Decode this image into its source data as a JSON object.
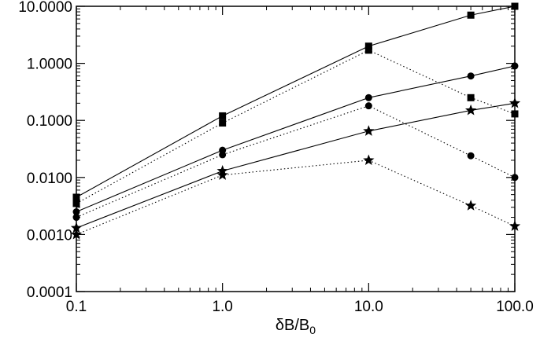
{
  "chart_data": {
    "type": "line",
    "xscale": "log",
    "yscale": "log",
    "xlim": [
      0.1,
      100.0
    ],
    "ylim": [
      0.0001,
      10.0
    ],
    "xlabel": "δB/B",
    "xlabel_sub": "0",
    "ylabel": "",
    "title": "",
    "grid": false,
    "legend": "none",
    "xticks": [
      {
        "value": 0.1,
        "label": "0.1"
      },
      {
        "value": 1.0,
        "label": "1.0"
      },
      {
        "value": 10.0,
        "label": "10.0"
      },
      {
        "value": 100.0,
        "label": "100.0"
      }
    ],
    "yticks": [
      {
        "value": 0.0001,
        "label": "0.0001"
      },
      {
        "value": 0.001,
        "label": "0.0010"
      },
      {
        "value": 0.01,
        "label": "0.0100"
      },
      {
        "value": 0.1,
        "label": "0.1000"
      },
      {
        "value": 1.0,
        "label": "1.0000"
      },
      {
        "value": 10.0,
        "label": "10.0000"
      }
    ],
    "series": [
      {
        "marker": "square",
        "linestyle": "solid",
        "x": [
          0.1,
          1.0,
          10.0,
          50.0,
          100.0
        ],
        "y": [
          0.0045,
          0.12,
          2.0,
          7.0,
          10.0
        ]
      },
      {
        "marker": "square",
        "linestyle": "dotted",
        "x": [
          0.1,
          1.0,
          10.0,
          50.0,
          100.0
        ],
        "y": [
          0.0035,
          0.09,
          1.7,
          0.25,
          0.13
        ]
      },
      {
        "marker": "circle",
        "linestyle": "solid",
        "x": [
          0.1,
          1.0,
          10.0,
          50.0,
          100.0
        ],
        "y": [
          0.0025,
          0.03,
          0.25,
          0.6,
          0.9
        ]
      },
      {
        "marker": "circle",
        "linestyle": "dotted",
        "x": [
          0.1,
          1.0,
          10.0,
          50.0,
          100.0
        ],
        "y": [
          0.002,
          0.025,
          0.18,
          0.024,
          0.01
        ]
      },
      {
        "marker": "star",
        "linestyle": "solid",
        "x": [
          0.1,
          1.0,
          10.0,
          50.0,
          100.0
        ],
        "y": [
          0.0013,
          0.013,
          0.065,
          0.15,
          0.2
        ]
      },
      {
        "marker": "star",
        "linestyle": "dotted",
        "x": [
          0.1,
          1.0,
          10.0,
          50.0,
          100.0
        ],
        "y": [
          0.001,
          0.011,
          0.02,
          0.0032,
          0.0014
        ]
      }
    ]
  }
}
